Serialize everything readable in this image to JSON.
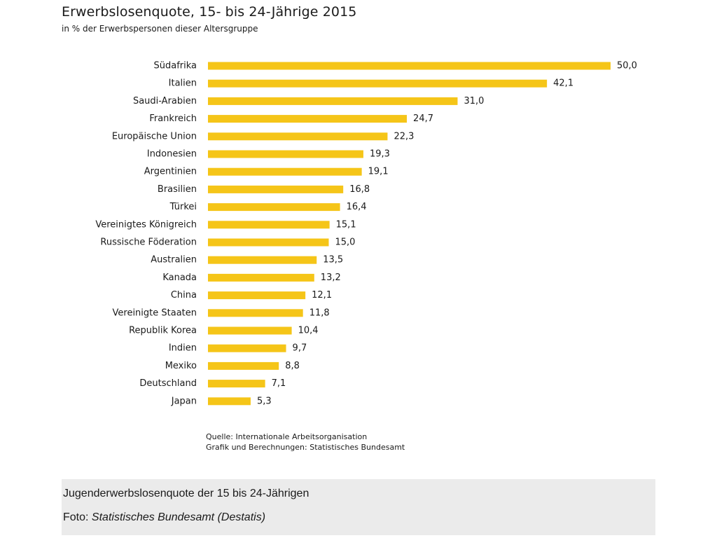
{
  "chart_data": {
    "type": "bar",
    "orientation": "horizontal",
    "title": "Erwerbslosenquote, 15- bis 24-Jährige 2015",
    "subtitle": "in % der Erwerbspersonen dieser Altersgruppe",
    "categories": [
      "Südafrika",
      "Italien",
      "Saudi-Arabien",
      "Frankreich",
      "Europäische Union",
      "Indonesien",
      "Argentinien",
      "Brasilien",
      "Türkei",
      "Vereinigtes Königreich",
      "Russische Föderation",
      "Australien",
      "Kanada",
      "China",
      "Vereinigte Staaten",
      "Republik Korea",
      "Indien",
      "Mexiko",
      "Deutschland",
      "Japan"
    ],
    "values": [
      50.0,
      42.1,
      31.0,
      24.7,
      22.3,
      19.3,
      19.1,
      16.8,
      16.4,
      15.1,
      15.0,
      13.5,
      13.2,
      12.1,
      11.8,
      10.4,
      9.7,
      8.8,
      7.1,
      5.3
    ],
    "value_labels": [
      "50,0",
      "42,1",
      "31,0",
      "24,7",
      "22,3",
      "19,3",
      "19,1",
      "16,8",
      "16,4",
      "15,1",
      "15,0",
      "13,5",
      "13,2",
      "12,1",
      "11,8",
      "10,4",
      "9,7",
      "8,8",
      "7,1",
      "5,3"
    ],
    "xlim": [
      0,
      50
    ],
    "grid": false,
    "bar_color": "#f5c518"
  },
  "source": {
    "line1": "Quelle: Internationale Arbeitsorganisation",
    "line2": "Grafik und Berechnungen: Statistisches Bundesamt"
  },
  "caption": {
    "text": "Jugenderwerbslosenquote der 15 bis 24-Jährigen",
    "credit_label": "Foto:",
    "credit_source": "Statistisches Bundesamt (Destatis)"
  }
}
